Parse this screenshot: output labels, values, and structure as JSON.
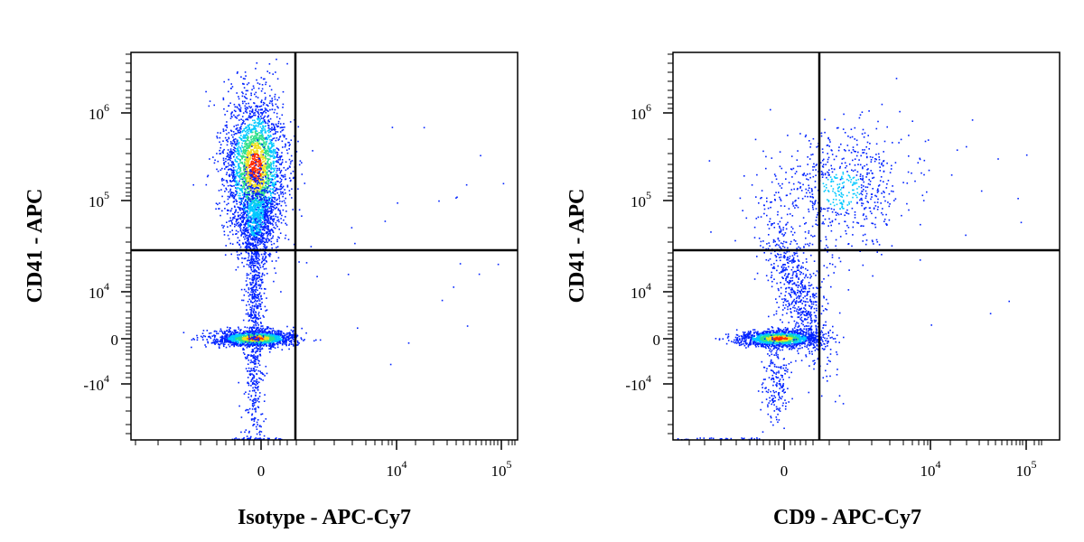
{
  "colors": {
    "low": "#0022ff",
    "mid1": "#00c8ff",
    "mid2": "#2ee08a",
    "mid3": "#f0e020",
    "high": "#ff2a00",
    "gate": "#000000",
    "axis": "#000000"
  },
  "chart_data": [
    {
      "type": "scatter",
      "subtype": "flow-cytometry density dot plot",
      "xlabel": "Isotype - APC-Cy7",
      "ylabel": "CD41 - APC",
      "x_scale": "biexponential",
      "y_scale": "biexponential",
      "x_ticks": [
        {
          "value": 0,
          "base": "0",
          "exp": ""
        },
        {
          "value": 10000,
          "base": "10",
          "exp": "4"
        },
        {
          "value": 100000,
          "base": "10",
          "exp": "5"
        }
      ],
      "y_ticks": [
        {
          "value": 1000000,
          "base": "10",
          "exp": "6"
        },
        {
          "value": 100000,
          "base": "10",
          "exp": "5"
        },
        {
          "value": 10000,
          "base": "10",
          "exp": "4"
        },
        {
          "value": 0,
          "base": "0",
          "exp": ""
        },
        {
          "value": -10000,
          "base": "-10",
          "exp": "4"
        }
      ],
      "x_range": [
        -60000,
        150000
      ],
      "y_range": [
        -40000,
        4000000
      ],
      "gate": {
        "x": 3000,
        "y": 30000
      },
      "populations": [
        {
          "name": "CD41+ platelets",
          "x_center": 0,
          "y_center": 300000,
          "relative_density": "high"
        },
        {
          "name": "CD41- events",
          "x_center": 0,
          "y_center": 0,
          "relative_density": "very high"
        }
      ],
      "grid": false,
      "legend": "none"
    },
    {
      "type": "scatter",
      "subtype": "flow-cytometry density dot plot",
      "xlabel": "CD9 - APC-Cy7",
      "ylabel": "CD41 - APC",
      "x_scale": "biexponential",
      "y_scale": "biexponential",
      "x_ticks": [
        {
          "value": 0,
          "base": "0",
          "exp": ""
        },
        {
          "value": 10000,
          "base": "10",
          "exp": "4"
        },
        {
          "value": 100000,
          "base": "10",
          "exp": "5"
        }
      ],
      "y_ticks": [
        {
          "value": 1000000,
          "base": "10",
          "exp": "6"
        },
        {
          "value": 100000,
          "base": "10",
          "exp": "5"
        },
        {
          "value": 10000,
          "base": "10",
          "exp": "4"
        },
        {
          "value": 0,
          "base": "0",
          "exp": ""
        },
        {
          "value": -10000,
          "base": "-10",
          "exp": "4"
        }
      ],
      "x_range": [
        -60000,
        150000
      ],
      "y_range": [
        -40000,
        4000000
      ],
      "gate": {
        "x": 1500,
        "y": 30000
      },
      "populations": [
        {
          "name": "CD9+ CD41+ platelets",
          "x_center": 5000,
          "y_center": 300000,
          "relative_density": "high"
        },
        {
          "name": "CD41- events",
          "x_center": 0,
          "y_center": 0,
          "relative_density": "very high"
        }
      ],
      "grid": false,
      "legend": "none"
    }
  ]
}
